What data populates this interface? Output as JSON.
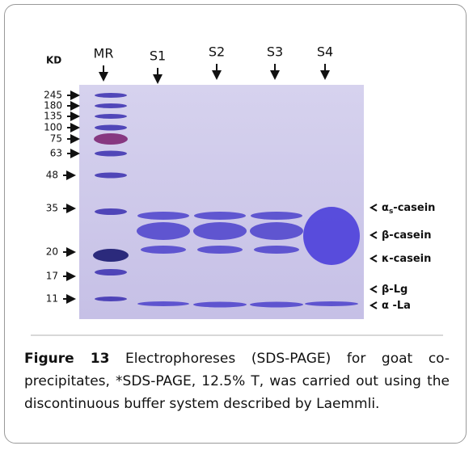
{
  "figure": {
    "kd_label": "KD",
    "lanes": [
      "MR",
      "S1",
      "S2",
      "S3",
      "S4"
    ],
    "markers": [
      245,
      180,
      135,
      100,
      75,
      63,
      48,
      35,
      20,
      17,
      11
    ],
    "bands": [
      {
        "prefix": "α",
        "sub": "s",
        "suffix": "-casein"
      },
      {
        "prefix": "β-casein"
      },
      {
        "prefix": "κ-casein"
      },
      {
        "prefix": "β-Lg"
      },
      {
        "prefix": "α -La"
      }
    ],
    "caption": {
      "label": "Figure 13",
      "text": "Electrophoreses (SDS-PAGE) for goat co-precipitates, *SDS-PAGE, 12.5% T, was carried out using the discontinuous buffer system described by Laemmli."
    }
  }
}
